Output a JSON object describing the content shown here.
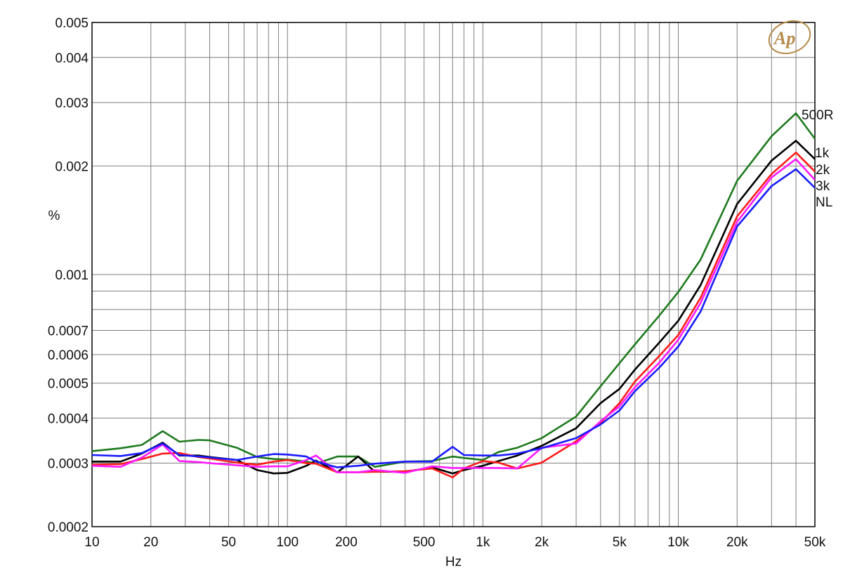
{
  "chart_data": {
    "type": "line",
    "title": "",
    "xlabel": "Hz",
    "ylabel": "%",
    "x_scale": "log",
    "y_scale": "log",
    "xlim": [
      10,
      50000
    ],
    "ylim": [
      0.0002,
      0.005
    ],
    "grid": true,
    "x_ticks": [
      {
        "value": 10,
        "label": "10"
      },
      {
        "value": 20,
        "label": "20"
      },
      {
        "value": 50,
        "label": "50"
      },
      {
        "value": 100,
        "label": "100"
      },
      {
        "value": 200,
        "label": "200"
      },
      {
        "value": 500,
        "label": "500"
      },
      {
        "value": 1000,
        "label": "1k"
      },
      {
        "value": 2000,
        "label": "2k"
      },
      {
        "value": 5000,
        "label": "5k"
      },
      {
        "value": 10000,
        "label": "10k"
      },
      {
        "value": 20000,
        "label": "20k"
      },
      {
        "value": 50000,
        "label": "50k"
      }
    ],
    "y_ticks": [
      {
        "value": 0.0002,
        "label": "0.0002"
      },
      {
        "value": 0.0003,
        "label": "0.0003"
      },
      {
        "value": 0.0004,
        "label": "0.0004"
      },
      {
        "value": 0.0005,
        "label": "0.0005"
      },
      {
        "value": 0.0006,
        "label": "0.0006"
      },
      {
        "value": 0.0007,
        "label": "0.0007"
      },
      {
        "value": 0.001,
        "label": "0.001"
      },
      {
        "value": 0.002,
        "label": "0.002"
      },
      {
        "value": 0.003,
        "label": "0.003"
      },
      {
        "value": 0.004,
        "label": "0.004"
      },
      {
        "value": 0.005,
        "label": "0.005"
      }
    ],
    "x_grid": [
      10,
      20,
      30,
      40,
      50,
      60,
      70,
      80,
      90,
      100,
      200,
      300,
      400,
      500,
      600,
      700,
      800,
      900,
      1000,
      2000,
      3000,
      4000,
      5000,
      6000,
      7000,
      8000,
      9000,
      10000,
      20000,
      30000,
      40000,
      50000
    ],
    "y_grid": [
      0.0002,
      0.0003,
      0.0004,
      0.0005,
      0.0006,
      0.0007,
      0.0008,
      0.0009,
      0.001,
      0.002,
      0.003,
      0.004,
      0.005
    ],
    "x": [
      10,
      14,
      18,
      23,
      28,
      35,
      40,
      55,
      70,
      85,
      100,
      125,
      140,
      180,
      230,
      280,
      400,
      550,
      700,
      800,
      1000,
      1200,
      1500,
      2000,
      3000,
      4000,
      5000,
      6000,
      8000,
      10000,
      13000,
      20000,
      30000,
      40000,
      50000
    ],
    "series": [
      {
        "name": "500R",
        "color": "#1e7a1e",
        "values": [
          0.000324,
          0.00033,
          0.000337,
          0.000368,
          0.000344,
          0.000348,
          0.000347,
          0.000331,
          0.000312,
          0.000308,
          0.000307,
          0.000303,
          0.000299,
          0.000313,
          0.000313,
          0.000293,
          0.000303,
          0.000304,
          0.000313,
          0.00031,
          0.000306,
          0.000322,
          0.000331,
          0.000352,
          0.000404,
          0.00049,
          0.000568,
          0.00064,
          0.00077,
          0.000895,
          0.0011,
          0.00182,
          0.00242,
          0.0028,
          0.00238
        ]
      },
      {
        "name": "1k",
        "color": "#000000",
        "values": [
          0.000303,
          0.000303,
          0.000319,
          0.000342,
          0.000315,
          0.000315,
          0.000312,
          0.000306,
          0.000287,
          0.000281,
          0.000282,
          0.000295,
          0.000305,
          0.000283,
          0.000313,
          0.000284,
          0.000284,
          0.000292,
          0.000281,
          0.000287,
          0.000295,
          0.000304,
          0.000315,
          0.000335,
          0.000375,
          0.00044,
          0.000482,
          0.000545,
          0.000648,
          0.000745,
          0.000935,
          0.00157,
          0.00207,
          0.00235,
          0.00209
        ]
      },
      {
        "name": "2k",
        "color": "#ff1a1a",
        "values": [
          0.000297,
          0.000298,
          0.000308,
          0.000319,
          0.00032,
          0.000312,
          0.000309,
          0.000301,
          0.000297,
          0.000303,
          0.000306,
          0.0003,
          0.000299,
          0.000283,
          0.000283,
          0.000284,
          0.000285,
          0.00029,
          0.000274,
          0.00029,
          0.000304,
          0.000301,
          0.00029,
          0.000301,
          0.000345,
          0.000388,
          0.00044,
          0.000505,
          0.000595,
          0.00068,
          0.000862,
          0.00145,
          0.0019,
          0.00218,
          0.00193
        ]
      },
      {
        "name": "3k",
        "color": "#ff1aff",
        "values": [
          0.000295,
          0.000293,
          0.000311,
          0.000338,
          0.000304,
          0.000302,
          0.0003,
          0.000296,
          0.000293,
          0.000294,
          0.000294,
          0.000306,
          0.000315,
          0.000283,
          0.000283,
          0.000287,
          0.000282,
          0.000294,
          0.000291,
          0.000291,
          0.000291,
          0.000291,
          0.00029,
          0.000331,
          0.00034,
          0.000392,
          0.000431,
          0.000487,
          0.00057,
          0.00066,
          0.000834,
          0.0014,
          0.00186,
          0.00209,
          0.00183
        ]
      },
      {
        "name": "NL",
        "color": "#1a1aff",
        "values": [
          0.000316,
          0.000314,
          0.00032,
          0.00034,
          0.000316,
          0.000313,
          0.000311,
          0.000306,
          0.000313,
          0.000318,
          0.000317,
          0.000313,
          0.000303,
          0.000292,
          0.000295,
          0.000299,
          0.000303,
          0.000303,
          0.000333,
          0.000316,
          0.000315,
          0.000315,
          0.000319,
          0.00033,
          0.000352,
          0.000384,
          0.00042,
          0.000475,
          0.000552,
          0.000632,
          0.00079,
          0.00136,
          0.00176,
          0.00196,
          0.00174
        ]
      }
    ],
    "legend_placement": "right-end-of-lines"
  }
}
